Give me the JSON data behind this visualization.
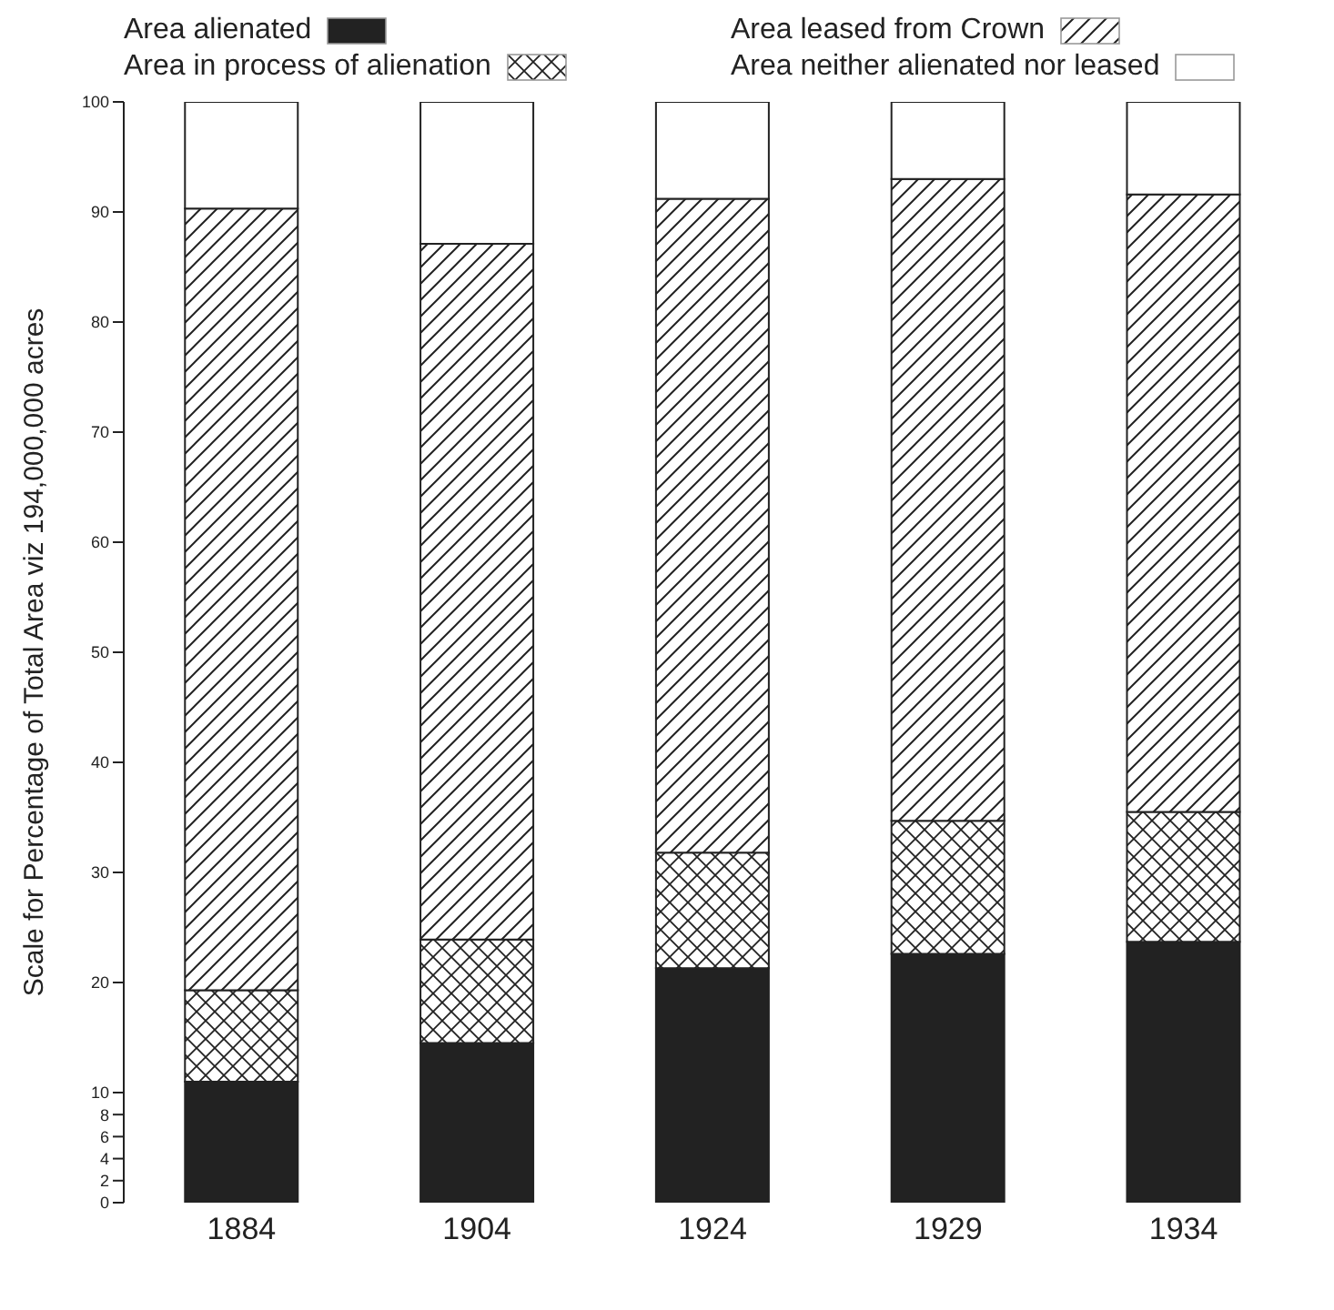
{
  "chart_data": {
    "type": "bar",
    "stacked": true,
    "ylabel": "Scale for Percentage of Total Area viz 194,000,000 acres",
    "categories": [
      "1884",
      "1904",
      "1924",
      "1929",
      "1934"
    ],
    "series": [
      {
        "name": "Area alienated",
        "color": "#222222",
        "values": [
          11,
          14.5,
          21.3,
          22.6,
          23.7
        ]
      },
      {
        "name": "Area in process of alienation",
        "color": "#222222",
        "values": [
          8.3,
          9.4,
          10.5,
          12.1,
          11.8
        ]
      },
      {
        "name": "Area leased from Crown",
        "color": "#222222",
        "values": [
          71,
          63.2,
          59.4,
          58.3,
          56.1
        ]
      },
      {
        "name": "Area neither alienated nor leased",
        "color": "#ffffff",
        "values": [
          9.7,
          12.9,
          8.8,
          7,
          8.4
        ]
      }
    ],
    "ylim": [
      0,
      100
    ],
    "yticks": [
      0,
      2,
      4,
      6,
      8,
      10,
      20,
      30,
      40,
      50,
      60,
      70,
      80,
      90,
      100
    ],
    "grid": false,
    "legend": "top"
  }
}
